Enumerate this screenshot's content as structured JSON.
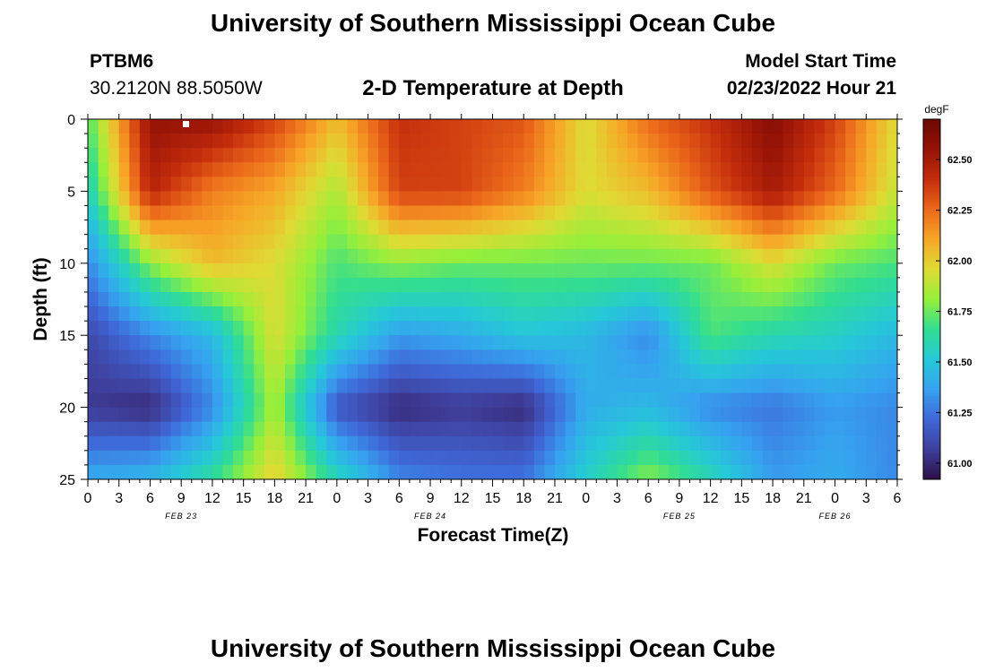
{
  "page": {
    "title": "University of Southern Mississippi Ocean Cube",
    "footer_title": "University of Southern Mississippi Ocean Cube",
    "station": "PTBM6",
    "location": "30.2120N  88.5050W",
    "model_start_label": "Model Start Time",
    "model_start_value": "02/23/2022 Hour 21"
  },
  "colors": {
    "colormap": [
      "#2b0f46",
      "#3f3f9c",
      "#3f68d8",
      "#36a2f0",
      "#25c9d7",
      "#31dd92",
      "#96ef3a",
      "#dfdb34",
      "#f7a627",
      "#eb671a",
      "#c42d0c",
      "#951206",
      "#6a0805"
    ]
  },
  "chart_data": {
    "type": "heatmap",
    "title": "2-D Temperature at Depth",
    "xlabel": "Forecast Time(Z)",
    "ylabel": "Depth (ft)",
    "x_ticks": [
      "0",
      "3",
      "6",
      "9",
      "12",
      "15",
      "18",
      "21",
      "0",
      "3",
      "6",
      "9",
      "12",
      "15",
      "18",
      "21",
      "0",
      "3",
      "6",
      "9",
      "12",
      "15",
      "18",
      "21",
      "0",
      "3",
      "6"
    ],
    "x_hours": [
      0,
      3,
      6,
      9,
      12,
      15,
      18,
      21,
      24,
      27,
      30,
      33,
      36,
      39,
      42,
      45,
      48,
      51,
      54,
      57,
      60,
      63,
      66,
      69,
      72,
      75,
      78
    ],
    "x_range_hours": [
      0,
      78
    ],
    "date_labels": [
      {
        "label": "FEB 23",
        "hour": 9
      },
      {
        "label": "FEB 24",
        "hour": 33
      },
      {
        "label": "FEB 25",
        "hour": 57
      },
      {
        "label": "FEB 26",
        "hour": 72
      }
    ],
    "y_ticks": [
      0,
      5,
      10,
      15,
      20,
      25
    ],
    "y_range": [
      0,
      25
    ],
    "colorbar": {
      "unit": "degF",
      "range": [
        60.92,
        62.7
      ],
      "ticks": [
        "62.50",
        "62.25",
        "62.00",
        "61.75",
        "61.50",
        "61.25",
        "61.00"
      ],
      "tick_values": [
        62.5,
        62.25,
        62.0,
        61.75,
        61.5,
        61.25,
        61.0
      ]
    },
    "grid_hours": [
      0,
      6,
      12,
      18,
      24,
      30,
      36,
      42,
      48,
      54,
      60,
      66,
      72,
      78
    ],
    "grid_depths": [
      0,
      5,
      10,
      15,
      20,
      25
    ],
    "values": [
      [
        61.7,
        62.55,
        62.55,
        62.35,
        62.05,
        62.4,
        62.35,
        62.3,
        61.95,
        62.25,
        62.4,
        62.6,
        62.35,
        61.95
      ],
      [
        61.55,
        62.45,
        62.2,
        62.1,
        61.85,
        62.35,
        62.35,
        62.2,
        61.95,
        62.05,
        62.3,
        62.5,
        62.25,
        61.9
      ],
      [
        61.3,
        61.8,
        62.05,
        61.95,
        61.7,
        61.8,
        61.75,
        61.75,
        61.75,
        61.75,
        61.75,
        61.95,
        61.75,
        61.7
      ],
      [
        61.1,
        61.3,
        61.45,
        61.95,
        61.6,
        61.35,
        61.4,
        61.5,
        61.45,
        61.3,
        61.7,
        61.6,
        61.55,
        61.45
      ],
      [
        61.05,
        61.0,
        61.3,
        61.85,
        61.15,
        61.0,
        61.05,
        61.0,
        61.4,
        61.45,
        61.3,
        61.25,
        61.35,
        61.3
      ],
      [
        61.4,
        61.45,
        61.65,
        62.0,
        61.6,
        61.3,
        61.25,
        61.25,
        61.55,
        61.8,
        61.6,
        61.35,
        61.4,
        61.3
      ]
    ]
  }
}
